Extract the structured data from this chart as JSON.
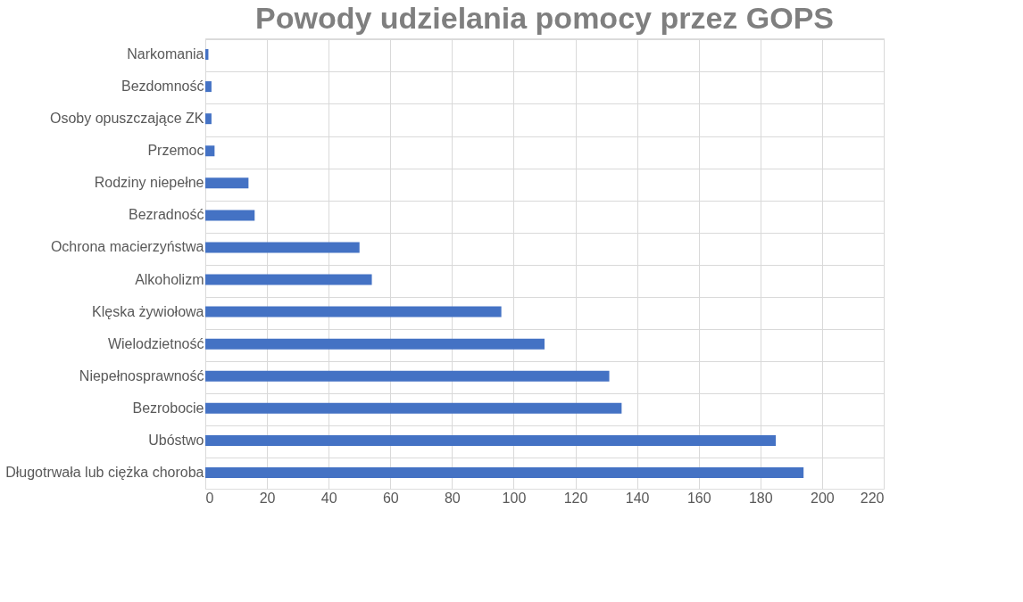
{
  "chart_data": {
    "type": "bar",
    "orientation": "horizontal",
    "title": "Powody udzielania pomocy przez GOPS",
    "categories": [
      "Narkomania",
      "Bezdomność",
      "Osoby opuszczające ZK",
      "Przemoc",
      "Rodziny niepełne",
      "Bezradność",
      "Ochrona macierzyństwa",
      "Alkoholizm",
      "Klęska żywiołowa",
      "Wielodzietność",
      "Niepełnosprawność",
      "Bezrobocie",
      "Ubóstwo",
      "Długotrwała lub ciężka choroba"
    ],
    "values": [
      1,
      2,
      2,
      3,
      14,
      16,
      50,
      54,
      96,
      110,
      131,
      135,
      185,
      194
    ],
    "color": "#4472c4",
    "xlim": [
      0,
      220
    ],
    "xticks": [
      0,
      20,
      40,
      60,
      80,
      100,
      120,
      140,
      160,
      180,
      200,
      220
    ],
    "grid": true
  }
}
